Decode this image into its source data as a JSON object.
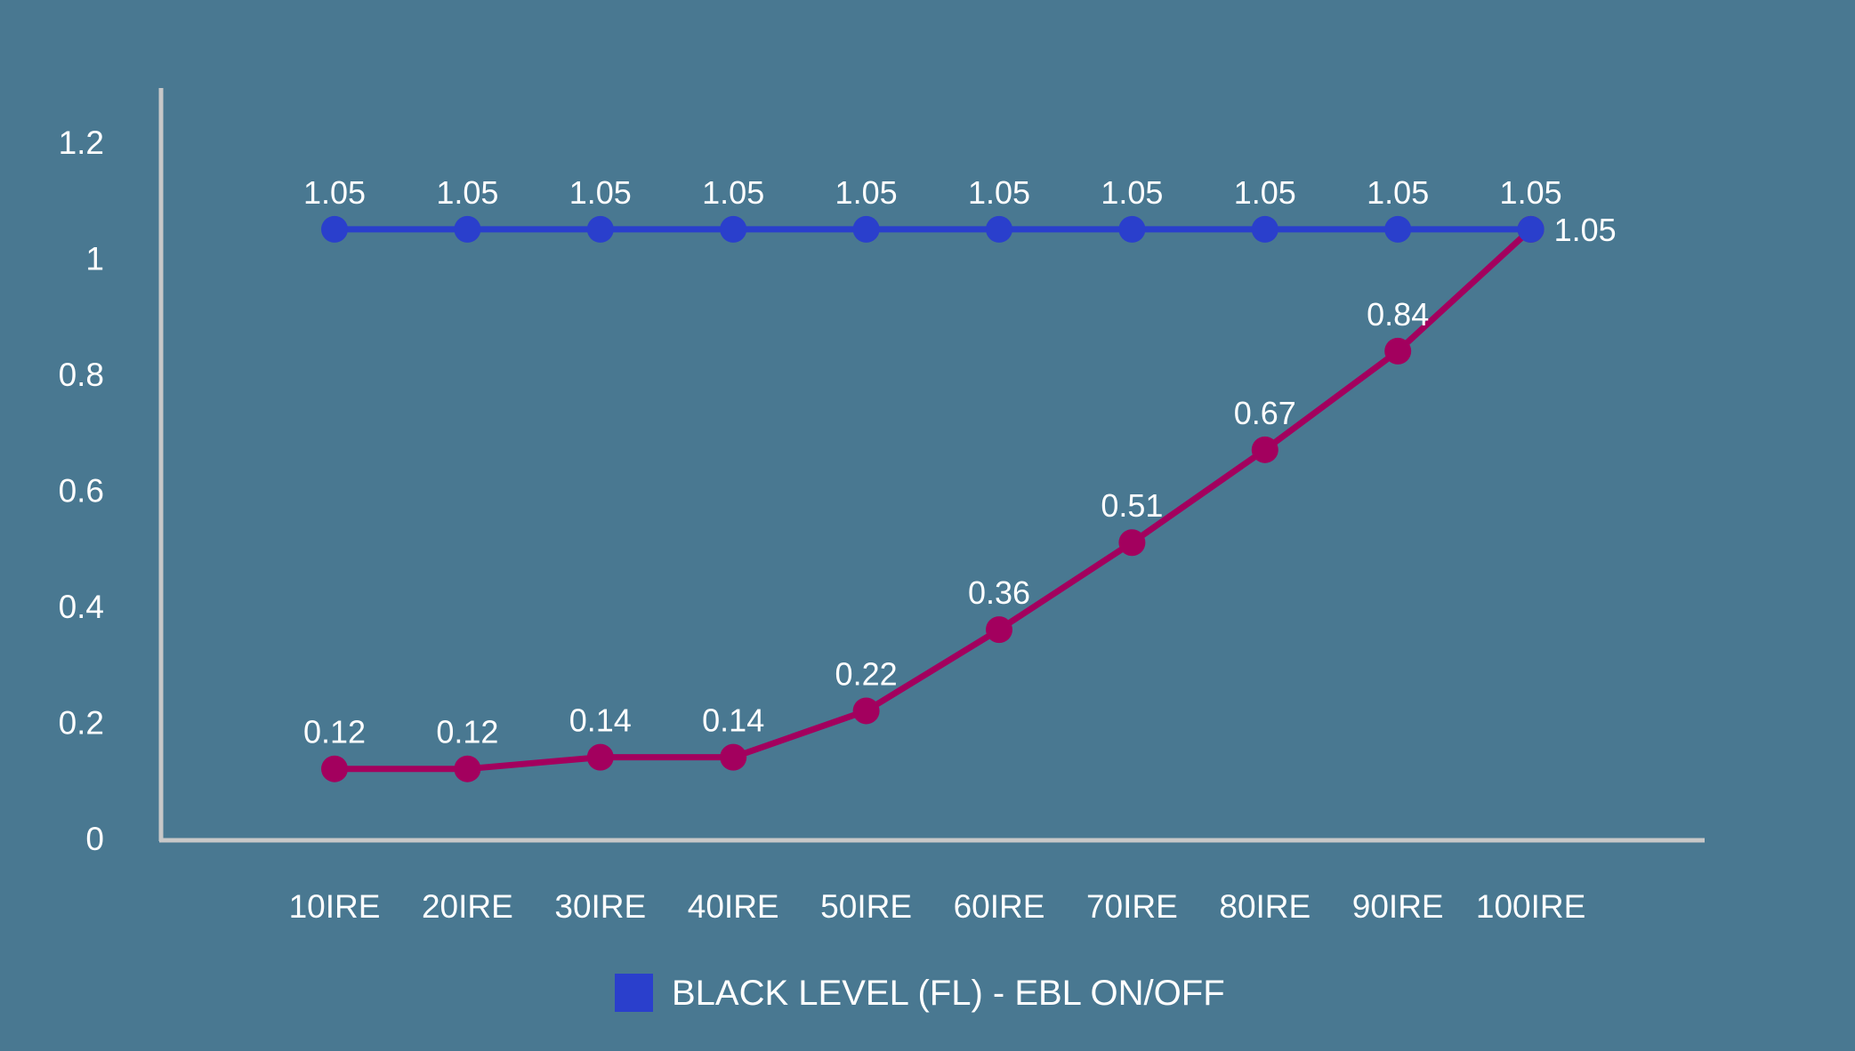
{
  "chart_data": {
    "type": "line",
    "title": "",
    "xlabel": "",
    "ylabel": "",
    "categories": [
      "10IRE",
      "20IRE",
      "30IRE",
      "40IRE",
      "50IRE",
      "60IRE",
      "70IRE",
      "80IRE",
      "90IRE",
      "100IRE"
    ],
    "ylim": [
      0,
      1.2
    ],
    "yticks": [
      "0",
      "0.2",
      "0.4",
      "0.6",
      "0.8",
      "1",
      "1.2"
    ],
    "grid": false,
    "legend_position": "bottom",
    "legend": [
      "BLACK LEVEL (FL) - EBL ON/OFF"
    ],
    "series": [
      {
        "name": "BLACK LEVEL (FL) - EBL ON/OFF",
        "color": "#2a3fcc",
        "values": [
          1.05,
          1.05,
          1.05,
          1.05,
          1.05,
          1.05,
          1.05,
          1.05,
          1.05,
          1.05
        ],
        "labels": [
          "1.05",
          "1.05",
          "1.05",
          "1.05",
          "1.05",
          "1.05",
          "1.05",
          "1.05",
          "1.05",
          "1.05"
        ]
      },
      {
        "name": "",
        "color": "#a3005e",
        "values": [
          0.12,
          0.12,
          0.14,
          0.14,
          0.22,
          0.36,
          0.51,
          0.67,
          0.84,
          1.05
        ],
        "labels": [
          "0.12",
          "0.12",
          "0.14",
          "0.14",
          "0.22",
          "0.36",
          "0.51",
          "0.67",
          "0.84",
          "1.05"
        ]
      }
    ]
  }
}
